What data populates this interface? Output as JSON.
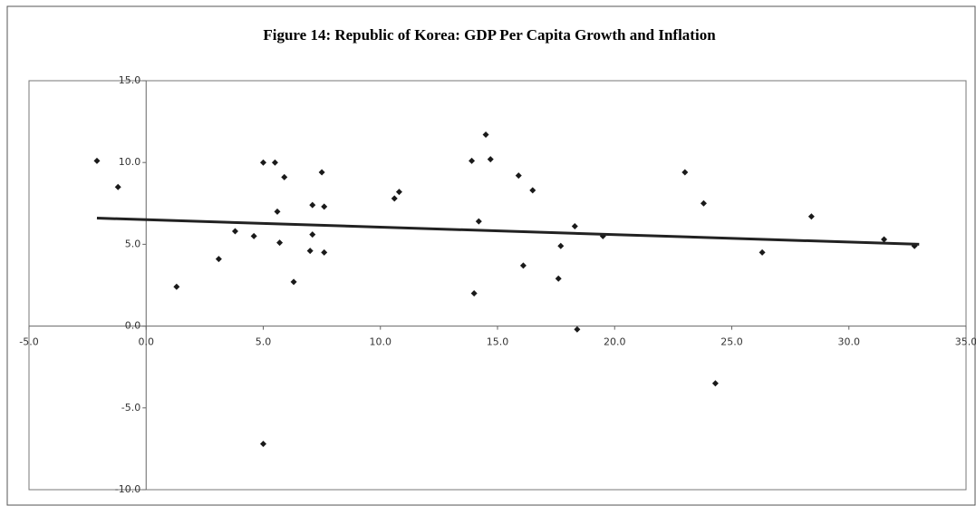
{
  "chart_data": {
    "type": "scatter",
    "title": "Figure 14: Republic of Korea: GDP Per Capita Growth and Inflation",
    "xlim": [
      -5,
      35
    ],
    "ylim": [
      -10,
      15
    ],
    "xticks": [
      {
        "value": -5,
        "label": "-5.0"
      },
      {
        "value": 0,
        "label": "0.0"
      },
      {
        "value": 5,
        "label": "5.0"
      },
      {
        "value": 10,
        "label": "10.0"
      },
      {
        "value": 15,
        "label": "15.0"
      },
      {
        "value": 20,
        "label": "20.0"
      },
      {
        "value": 25,
        "label": "25.0"
      },
      {
        "value": 30,
        "label": "30.0"
      },
      {
        "value": 35,
        "label": "35.0"
      }
    ],
    "yticks": [
      {
        "value": -10,
        "label": "-10.0"
      },
      {
        "value": -5,
        "label": "-5.0"
      },
      {
        "value": 0,
        "label": "0.0"
      },
      {
        "value": 5,
        "label": "5.0"
      },
      {
        "value": 10,
        "label": "10.0"
      },
      {
        "value": 15,
        "label": "15.0"
      }
    ],
    "color": "#1a1a1a",
    "x": [
      -2.1,
      -1.2,
      1.3,
      3.1,
      3.8,
      4.6,
      5.0,
      5.0,
      5.5,
      5.6,
      5.7,
      5.9,
      6.3,
      7.0,
      7.1,
      7.1,
      7.5,
      7.6,
      7.6,
      10.6,
      10.8,
      13.9,
      14.0,
      14.2,
      14.5,
      14.7,
      15.9,
      16.1,
      16.5,
      17.6,
      17.7,
      18.3,
      18.4,
      19.5,
      23.0,
      23.8,
      24.3,
      26.3,
      28.4,
      31.5,
      32.8
    ],
    "values": [
      10.1,
      8.5,
      2.4,
      4.1,
      5.8,
      5.5,
      10.0,
      -7.2,
      10.0,
      7.0,
      5.1,
      9.1,
      2.7,
      4.6,
      7.4,
      5.6,
      9.4,
      7.3,
      4.5,
      7.8,
      8.2,
      10.1,
      2.0,
      6.4,
      11.7,
      10.2,
      9.2,
      3.7,
      8.3,
      2.9,
      4.9,
      6.1,
      -0.2,
      5.5,
      9.4,
      7.5,
      -3.5,
      4.5,
      6.7,
      5.3,
      4.9
    ],
    "trendline": {
      "x": [
        -2.1,
        33.0
      ],
      "values": [
        6.6,
        5.0
      ],
      "color": "#222222"
    }
  }
}
